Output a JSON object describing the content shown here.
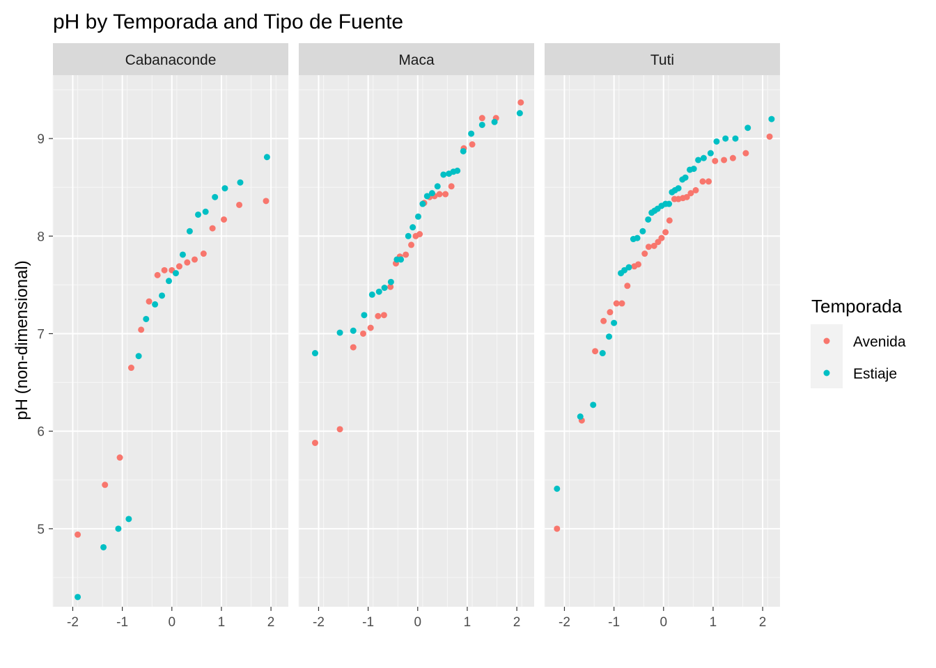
{
  "chart_data": {
    "type": "scatter",
    "title": "pH by Temporada and Tipo de Fuente",
    "xlabel": "",
    "ylabel": "pH (non-dimensional)",
    "xlim": [
      -2.4,
      2.35
    ],
    "ylim": [
      4.2,
      9.65
    ],
    "x_ticks": [
      "-2",
      "-1",
      "0",
      "1",
      "2"
    ],
    "y_ticks": [
      "5",
      "6",
      "7",
      "8",
      "9"
    ],
    "grid": true,
    "legend": {
      "title": "Temporada",
      "position": "right",
      "entries": [
        {
          "name": "Avenida",
          "color": "#F8766D"
        },
        {
          "name": "Estiaje",
          "color": "#00BFC4"
        }
      ]
    },
    "facets": [
      {
        "label": "Cabanaconde",
        "series": [
          {
            "name": "Avenida",
            "points": [
              [
                -1.9,
                4.94
              ],
              [
                -1.35,
                5.45
              ],
              [
                -1.05,
                5.73
              ],
              [
                -0.82,
                6.65
              ],
              [
                -0.62,
                7.04
              ],
              [
                -0.46,
                7.33
              ],
              [
                -0.29,
                7.6
              ],
              [
                -0.15,
                7.65
              ],
              [
                0.0,
                7.65
              ],
              [
                0.15,
                7.69
              ],
              [
                0.31,
                7.73
              ],
              [
                0.46,
                7.76
              ],
              [
                0.64,
                7.82
              ],
              [
                0.82,
                8.08
              ],
              [
                1.05,
                8.17
              ],
              [
                1.36,
                8.32
              ],
              [
                1.9,
                8.36
              ]
            ]
          },
          {
            "name": "Estiaje",
            "points": [
              [
                -1.9,
                4.3
              ],
              [
                -1.38,
                4.81
              ],
              [
                -1.08,
                5.0
              ],
              [
                -0.87,
                5.1
              ],
              [
                -0.67,
                6.77
              ],
              [
                -0.52,
                7.15
              ],
              [
                -0.34,
                7.3
              ],
              [
                -0.2,
                7.39
              ],
              [
                -0.06,
                7.54
              ],
              [
                0.08,
                7.62
              ],
              [
                0.22,
                7.81
              ],
              [
                0.36,
                8.05
              ],
              [
                0.53,
                8.22
              ],
              [
                0.68,
                8.25
              ],
              [
                0.87,
                8.4
              ],
              [
                1.07,
                8.49
              ],
              [
                1.38,
                8.55
              ],
              [
                1.92,
                8.81
              ]
            ]
          }
        ]
      },
      {
        "label": "Maca",
        "series": [
          {
            "name": "Avenida",
            "points": [
              [
                -2.07,
                5.88
              ],
              [
                -1.57,
                6.02
              ],
              [
                -1.3,
                6.86
              ],
              [
                -1.1,
                7.0
              ],
              [
                -0.95,
                7.06
              ],
              [
                -0.8,
                7.18
              ],
              [
                -0.68,
                7.19
              ],
              [
                -0.55,
                7.48
              ],
              [
                -0.44,
                7.72
              ],
              [
                -0.36,
                7.79
              ],
              [
                -0.24,
                7.81
              ],
              [
                -0.13,
                7.91
              ],
              [
                -0.04,
                8.0
              ],
              [
                0.04,
                8.02
              ],
              [
                0.13,
                8.34
              ],
              [
                0.24,
                8.4
              ],
              [
                0.34,
                8.41
              ],
              [
                0.44,
                8.43
              ],
              [
                0.56,
                8.43
              ],
              [
                0.68,
                8.51
              ],
              [
                0.93,
                8.9
              ],
              [
                1.1,
                8.94
              ],
              [
                1.3,
                9.21
              ],
              [
                1.58,
                9.21
              ],
              [
                2.08,
                9.37
              ]
            ]
          },
          {
            "name": "Estiaje",
            "points": [
              [
                -2.07,
                6.8
              ],
              [
                -1.57,
                7.01
              ],
              [
                -1.3,
                7.03
              ],
              [
                -1.08,
                7.19
              ],
              [
                -0.92,
                7.4
              ],
              [
                -0.78,
                7.43
              ],
              [
                -0.67,
                7.47
              ],
              [
                -0.54,
                7.53
              ],
              [
                -0.42,
                7.76
              ],
              [
                -0.34,
                7.76
              ],
              [
                -0.19,
                8.0
              ],
              [
                -0.1,
                8.09
              ],
              [
                0.01,
                8.2
              ],
              [
                0.1,
                8.33
              ],
              [
                0.19,
                8.41
              ],
              [
                0.29,
                8.44
              ],
              [
                0.4,
                8.51
              ],
              [
                0.52,
                8.63
              ],
              [
                0.63,
                8.64
              ],
              [
                0.72,
                8.66
              ],
              [
                0.8,
                8.67
              ],
              [
                0.92,
                8.87
              ],
              [
                1.08,
                9.05
              ],
              [
                1.3,
                9.14
              ],
              [
                1.55,
                9.17
              ],
              [
                2.06,
                9.26
              ]
            ]
          }
        ]
      },
      {
        "label": "Tuti",
        "series": [
          {
            "name": "Avenida",
            "points": [
              [
                -2.15,
                5.0
              ],
              [
                -1.65,
                6.11
              ],
              [
                -1.38,
                6.82
              ],
              [
                -1.21,
                7.13
              ],
              [
                -1.08,
                7.22
              ],
              [
                -0.95,
                7.31
              ],
              [
                -0.84,
                7.31
              ],
              [
                -0.73,
                7.49
              ],
              [
                -0.59,
                7.69
              ],
              [
                -0.51,
                7.71
              ],
              [
                -0.38,
                7.82
              ],
              [
                -0.3,
                7.89
              ],
              [
                -0.19,
                7.9
              ],
              [
                -0.11,
                7.94
              ],
              [
                -0.04,
                7.98
              ],
              [
                0.04,
                8.04
              ],
              [
                0.12,
                8.16
              ],
              [
                0.22,
                8.38
              ],
              [
                0.3,
                8.38
              ],
              [
                0.39,
                8.39
              ],
              [
                0.47,
                8.4
              ],
              [
                0.55,
                8.44
              ],
              [
                0.65,
                8.47
              ],
              [
                0.79,
                8.56
              ],
              [
                0.91,
                8.56
              ],
              [
                1.04,
                8.77
              ],
              [
                1.22,
                8.78
              ],
              [
                1.4,
                8.8
              ],
              [
                1.66,
                8.85
              ],
              [
                2.14,
                9.02
              ]
            ]
          },
          {
            "name": "Estiaje",
            "points": [
              [
                -2.15,
                5.41
              ],
              [
                -1.68,
                6.15
              ],
              [
                -1.42,
                6.27
              ],
              [
                -1.23,
                6.8
              ],
              [
                -1.1,
                6.97
              ],
              [
                -1.0,
                7.11
              ],
              [
                -0.86,
                7.62
              ],
              [
                -0.79,
                7.65
              ],
              [
                -0.7,
                7.68
              ],
              [
                -0.61,
                7.97
              ],
              [
                -0.53,
                7.98
              ],
              [
                -0.42,
                8.05
              ],
              [
                -0.31,
                8.17
              ],
              [
                -0.24,
                8.24
              ],
              [
                -0.18,
                8.26
              ],
              [
                -0.12,
                8.28
              ],
              [
                -0.04,
                8.31
              ],
              [
                0.04,
                8.33
              ],
              [
                0.11,
                8.33
              ],
              [
                0.17,
                8.45
              ],
              [
                0.23,
                8.47
              ],
              [
                0.3,
                8.49
              ],
              [
                0.38,
                8.58
              ],
              [
                0.44,
                8.6
              ],
              [
                0.53,
                8.68
              ],
              [
                0.61,
                8.69
              ],
              [
                0.7,
                8.78
              ],
              [
                0.81,
                8.8
              ],
              [
                0.95,
                8.85
              ],
              [
                1.07,
                8.97
              ],
              [
                1.25,
                9.0
              ],
              [
                1.45,
                9.0
              ],
              [
                1.7,
                9.11
              ],
              [
                2.18,
                9.2
              ]
            ]
          }
        ]
      }
    ]
  }
}
